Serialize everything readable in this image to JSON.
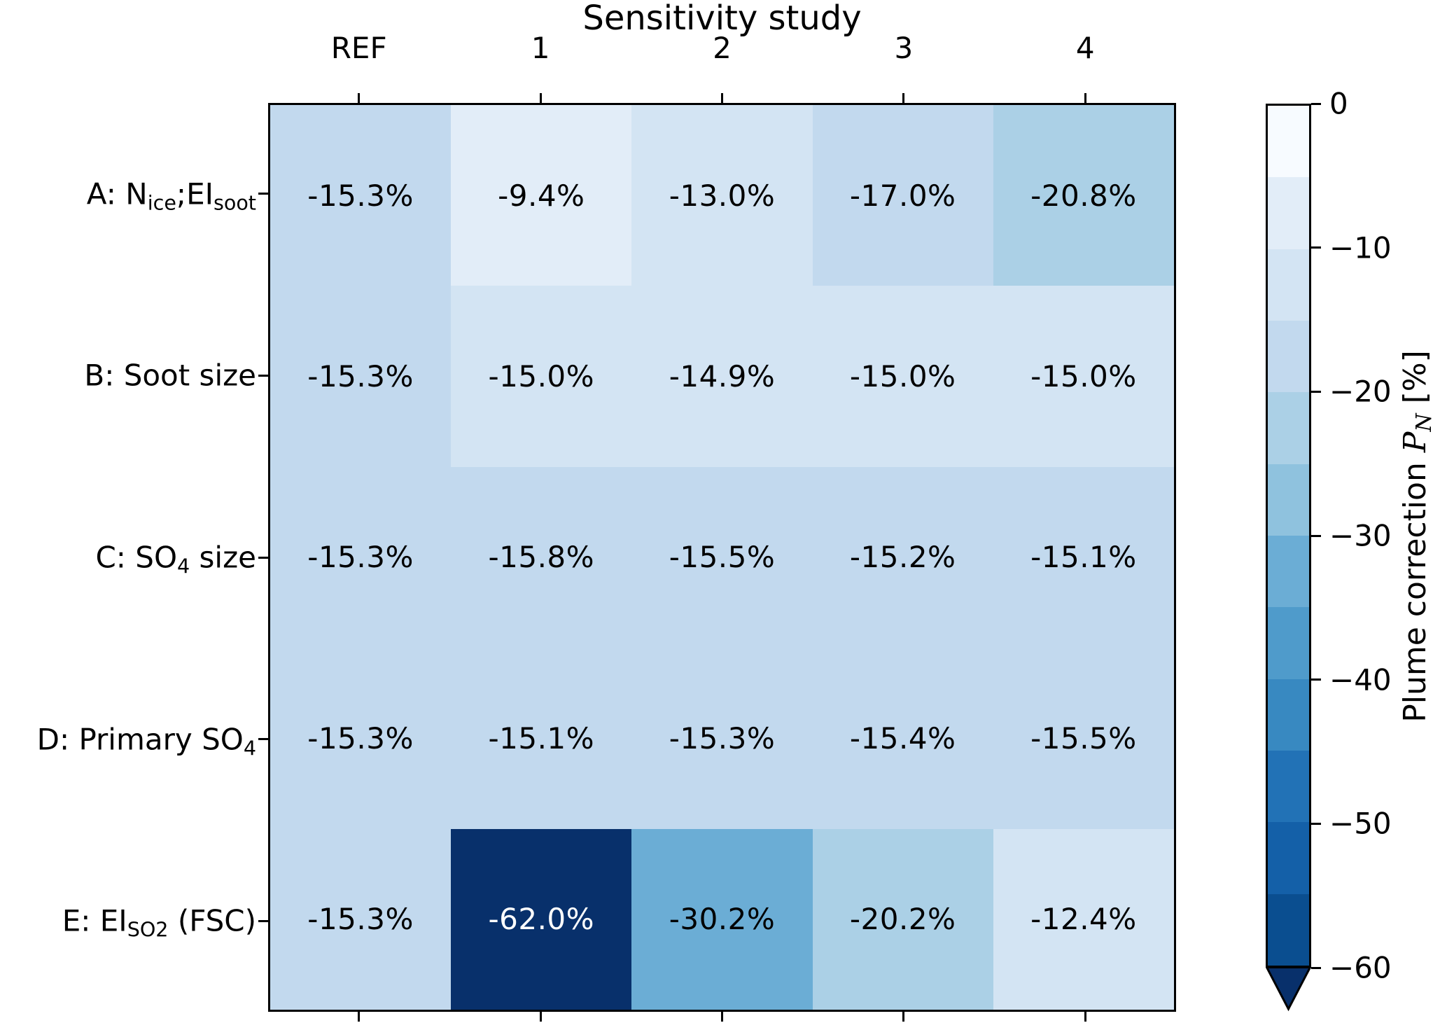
{
  "chart_data": {
    "type": "heatmap",
    "title": "Sensitivity study",
    "categories": [
      "REF",
      "1",
      "2",
      "3",
      "4"
    ],
    "rows": [
      {
        "label": "A: N_ice;EI_soot",
        "label_parts": [
          {
            "t": "A: N"
          },
          {
            "t": "ice",
            "sub": true
          },
          {
            "t": ";EI"
          },
          {
            "t": "soot",
            "sub": true
          }
        ],
        "values": [
          -15.3,
          -9.4,
          -13.0,
          -17.0,
          -20.8
        ]
      },
      {
        "label": "B: Soot size",
        "label_parts": [
          {
            "t": "B: Soot size"
          }
        ],
        "values": [
          -15.3,
          -15.0,
          -14.9,
          -15.0,
          -15.0
        ]
      },
      {
        "label": "C: SO4 size",
        "label_parts": [
          {
            "t": "C: SO"
          },
          {
            "t": "4",
            "sub": true
          },
          {
            "t": " size"
          }
        ],
        "values": [
          -15.3,
          -15.8,
          -15.5,
          -15.2,
          -15.1
        ]
      },
      {
        "label": "D: Primary SO4",
        "label_parts": [
          {
            "t": "D: Primary SO"
          },
          {
            "t": "4",
            "sub": true
          }
        ],
        "values": [
          -15.3,
          -15.1,
          -15.3,
          -15.4,
          -15.5
        ]
      },
      {
        "label": "E: EI_SO2 (FSC)",
        "label_parts": [
          {
            "t": "E: EI"
          },
          {
            "t": "SO2",
            "sub": true
          },
          {
            "t": " (FSC)"
          }
        ],
        "values": [
          -15.3,
          -62.0,
          -30.2,
          -20.2,
          -12.4
        ]
      }
    ],
    "cell_value_suffix": "%",
    "colorbar": {
      "label": "Plume correction PN [%]",
      "label_prefix": "Plume correction ",
      "label_symbol": "P",
      "label_symbol_sub": "N",
      "label_suffix": " [%]",
      "ticks": [
        "0",
        "−10",
        "−20",
        "−30",
        "−40",
        "−50",
        "−60"
      ],
      "tick_values": [
        0,
        -10,
        -20,
        -30,
        -40,
        -50,
        -60
      ],
      "range": [
        0,
        -60
      ],
      "bin_size": 5,
      "extend": "min",
      "palette": [
        "#f7fbff",
        "#e2edf8",
        "#d3e4f3",
        "#c2d9ee",
        "#abd0e6",
        "#8fc2de",
        "#6badd5",
        "#4f9bcb",
        "#3889c1",
        "#2272b6",
        "#1460a8",
        "#0a4e90",
        "#08306b"
      ]
    },
    "grid": false,
    "legend": false
  }
}
